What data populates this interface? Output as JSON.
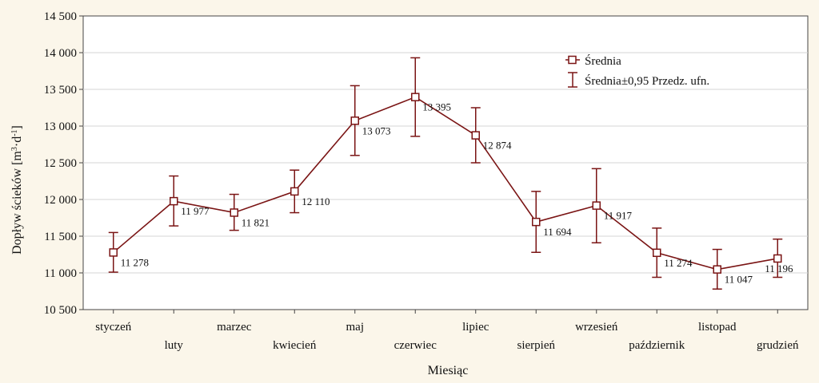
{
  "chart_data": {
    "type": "line",
    "title": "",
    "xlabel": "Miesiąc",
    "ylabel": "Dopływ ścieków",
    "ylabel_unit": {
      "open": " [m",
      "sup1": "3",
      "mid": "·d",
      "sup2": "-1",
      "close": "]"
    },
    "ylim": [
      10500,
      14500
    ],
    "yticks": [
      10500,
      11000,
      11500,
      12000,
      12500,
      13000,
      13500,
      14000,
      14500
    ],
    "ytick_labels": [
      "10 500",
      "11 000",
      "11 500",
      "12 000",
      "12 500",
      "13 000",
      "13 500",
      "14 000",
      "14 500"
    ],
    "grid": true,
    "legend": {
      "placement": "top-right",
      "mean_label": "Średnia",
      "ci_label": "Średnia±0,95 Przedz. ufn."
    },
    "categories": [
      "styczeń",
      "luty",
      "marzec",
      "kwiecień",
      "maj",
      "czerwiec",
      "lipiec",
      "sierpień",
      "wrzesień",
      "październik",
      "listopad",
      "grudzień"
    ],
    "series": [
      {
        "name": "Średnia",
        "values": [
          11278,
          11977,
          11821,
          12110,
          13073,
          13395,
          12874,
          11694,
          11917,
          11274,
          11047,
          11196
        ],
        "value_labels": [
          "11 278",
          "11 977",
          "11 821",
          "12 110",
          "13 073",
          "13 395",
          "12 874",
          "11 694",
          "11 917",
          "11 274",
          "11 047",
          "11 196"
        ],
        "ci_lower": [
          11010,
          11640,
          11580,
          11820,
          12600,
          12860,
          12500,
          11280,
          11410,
          10940,
          10780,
          10940
        ],
        "ci_upper": [
          11550,
          12320,
          12070,
          12400,
          13550,
          13930,
          13250,
          12110,
          12420,
          11610,
          11320,
          11460
        ]
      }
    ],
    "colors": {
      "series": "#7a1414",
      "background": "#fbf6ea",
      "plot": "#ffffff",
      "grid": "#d6d6d6"
    }
  }
}
